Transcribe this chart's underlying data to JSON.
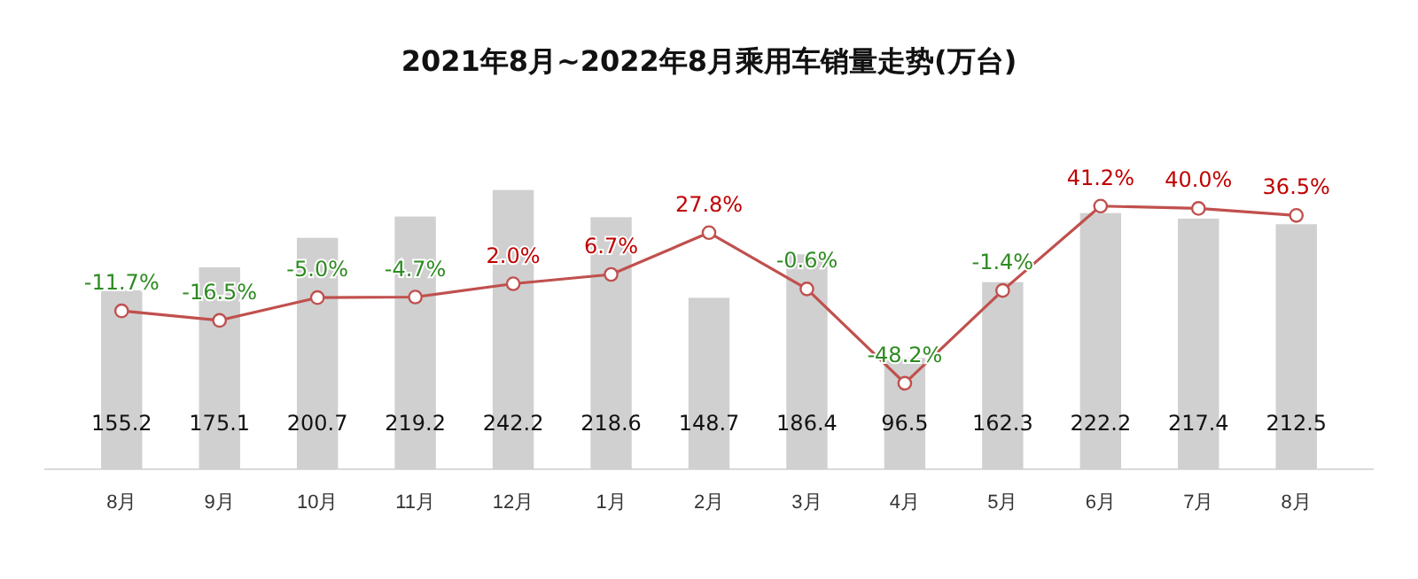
{
  "chart_data": {
    "type": "bar",
    "title": "2021年8月~2022年8月乘用车销量走势(万台)",
    "categories": [
      "8月",
      "9月",
      "10月",
      "11月",
      "12月",
      "1月",
      "2月",
      "3月",
      "4月",
      "5月",
      "6月",
      "7月",
      "8月"
    ],
    "series": [
      {
        "color": "#d0d0d0",
        "values": [
          155.2,
          175.1,
          200.7,
          219.2,
          242.2,
          218.6,
          148.7,
          186.4,
          96.5,
          162.3,
          222.2,
          217.4,
          212.5
        ]
      },
      {
        "type": "line",
        "axis": "y2",
        "color": "#c0504d",
        "values": [
          -11.7,
          -16.5,
          -5.0,
          -4.7,
          2.0,
          6.7,
          27.8,
          -0.6,
          -48.2,
          -1.4,
          41.2,
          40.0,
          36.5
        ],
        "value_labels": [
          "-11.7%",
          "-16.5%",
          "-5.0%",
          "-4.7%",
          "2.0%",
          "6.7%",
          "27.8%",
          "-0.6%",
          "-48.2%",
          "-1.4%",
          "41.2%",
          "40.0%",
          "36.5%"
        ]
      }
    ],
    "data_labels": true,
    "marker": "circle"
  }
}
